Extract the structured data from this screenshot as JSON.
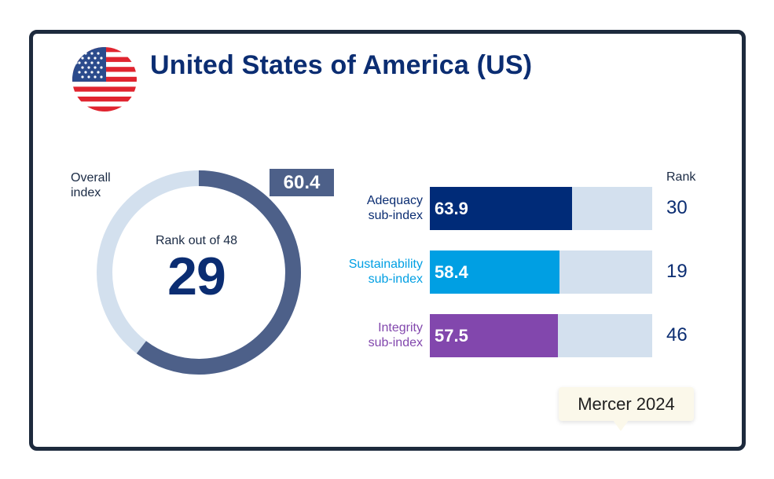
{
  "header": {
    "title": "United States of America (US)",
    "flag_icon": "us-flag-icon"
  },
  "source_tooltip": {
    "text": "Mercer 2024"
  },
  "chart_data": [
    {
      "type": "pie",
      "label": "Overall\nindex",
      "value": 60.4,
      "max": 100,
      "value_label": "60.4",
      "rank_label": "Rank out of 48",
      "rank": "29",
      "colors": {
        "fill": "#4d6089",
        "track": "#d3e0ee"
      }
    },
    {
      "type": "bar",
      "orientation": "horizontal",
      "rank_header": "Rank",
      "xlim": [
        0,
        100
      ],
      "categories": [
        "Adequacy\nsub-index",
        "Sustainability\nsub-index",
        "Integrity\nsub-index"
      ],
      "values": [
        63.9,
        58.4,
        57.5
      ],
      "value_labels": [
        "63.9",
        "58.4",
        "57.5"
      ],
      "ranks": [
        "30",
        "19",
        "46"
      ],
      "colors": [
        "#002b78",
        "#009fe3",
        "#8247ad"
      ],
      "label_colors": [
        "#0b2d72",
        "#009fe3",
        "#8247ad"
      ],
      "track_color": "#d3e0ee"
    }
  ]
}
